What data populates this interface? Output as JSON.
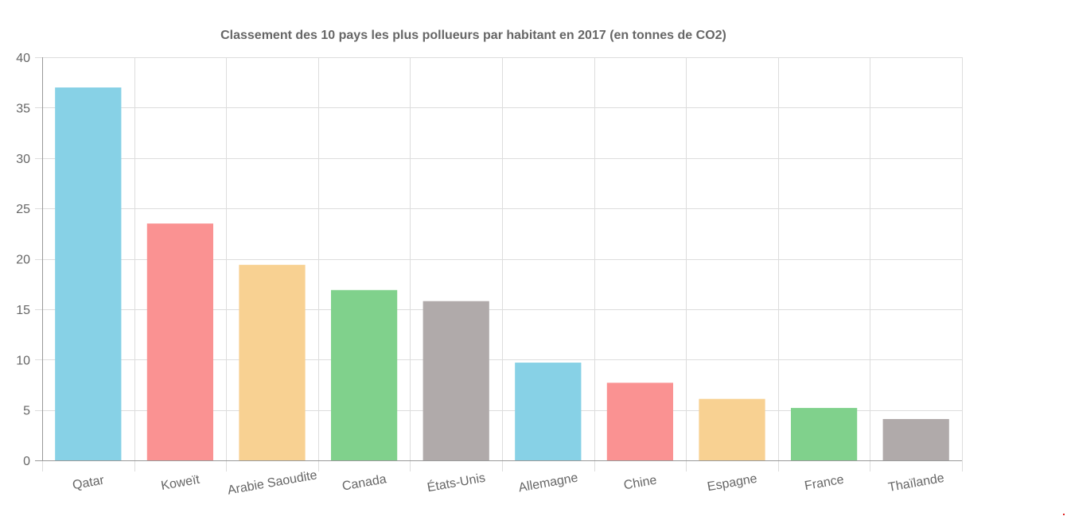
{
  "chart_data": {
    "type": "bar",
    "title": "Classement des 10 pays les plus pollueurs par habitant en 2017 (en tonnes de CO2)",
    "xlabel": "",
    "ylabel": "",
    "categories": [
      "Qatar",
      "Koweït",
      "Arabie Saoudite",
      "Canada",
      "États-Unis",
      "Allemagne",
      "Chine",
      "Espagne",
      "France",
      "Thaïlande"
    ],
    "values": [
      37.0,
      23.5,
      19.4,
      16.9,
      15.8,
      9.7,
      7.7,
      6.1,
      5.2,
      4.1
    ],
    "colors": [
      "#87d1e6",
      "#fa9292",
      "#f8d192",
      "#80d18c",
      "#b0aaaa",
      "#87d1e6",
      "#fa9292",
      "#f8d192",
      "#80d18c",
      "#b0aaaa"
    ],
    "ylim": [
      0,
      40
    ],
    "yticks": [
      "0",
      "5",
      "10",
      "15",
      "20",
      "25",
      "30",
      "35",
      "40"
    ],
    "grid": true,
    "legend": "none"
  }
}
